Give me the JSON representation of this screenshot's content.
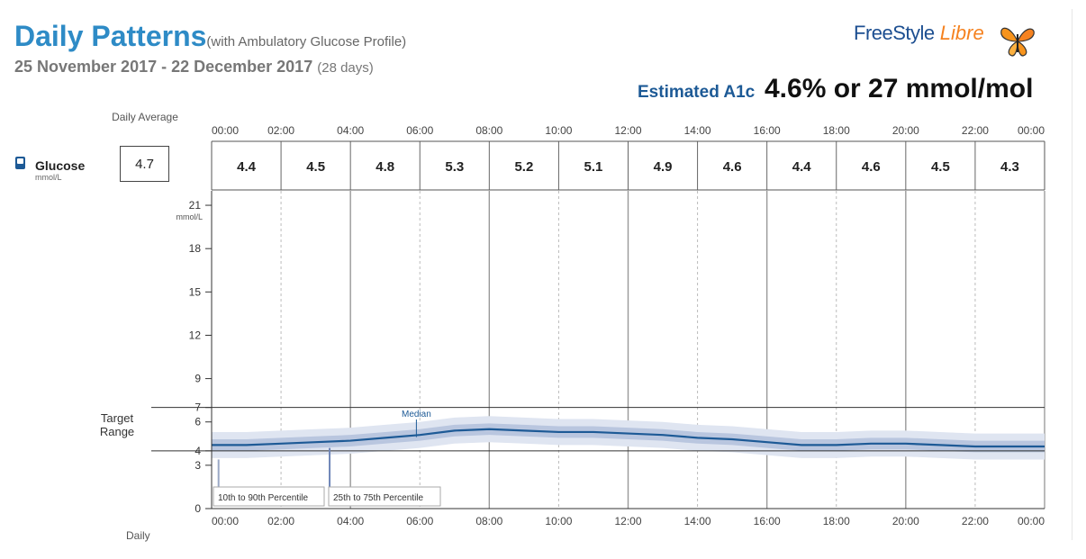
{
  "header": {
    "title": "Daily Patterns",
    "subtitle": "(with Ambulatory Glucose Profile)",
    "date_range": "25 November 2017 - 22 December 2017",
    "days": "(28 days)"
  },
  "brand": {
    "logo_part1": "FreeStyle",
    "logo_part2": "Libre"
  },
  "a1c": {
    "label": "Estimated A1c",
    "value": "4.6% or 27 mmol/mol"
  },
  "table": {
    "daily_average_label": "Daily Average",
    "glucose_label": "Glucose",
    "glucose_unit": "mmol/L",
    "daily_average_value": "4.7"
  },
  "labels": {
    "target_range": "Target Range",
    "median": "Median",
    "legend_outer": "10th to 90th Percentile",
    "legend_inner": "25th to 75th Percentile",
    "daily_bottom": "Daily"
  },
  "colors": {
    "title": "#2e8bc6",
    "median_line": "#1d5a96",
    "band_outer": "#dfe5f1",
    "band_inner": "#b9c6df",
    "grid_dashed": "#bbbbbb",
    "grid_solid": "#999999"
  },
  "chart_data": {
    "type": "line",
    "xlabel": "",
    "ylabel": "mmol/L",
    "x_unit_hours": [
      0,
      24
    ],
    "ylim": [
      0,
      22
    ],
    "y_ticks": [
      0,
      3,
      4,
      6,
      7,
      9,
      12,
      15,
      18,
      21
    ],
    "y_tick_labels": [
      "0",
      "3",
      "4",
      "6",
      "7",
      "9",
      "12",
      "15",
      "18",
      "21"
    ],
    "x_ticks": [
      "00:00",
      "02:00",
      "04:00",
      "06:00",
      "08:00",
      "10:00",
      "12:00",
      "14:00",
      "16:00",
      "18:00",
      "20:00",
      "22:00",
      "00:00"
    ],
    "target_range": [
      4,
      7
    ],
    "period_averages": [
      "4.4",
      "4.5",
      "4.8",
      "5.3",
      "5.2",
      "5.1",
      "4.9",
      "4.6",
      "4.4",
      "4.6",
      "4.5",
      "4.3"
    ],
    "series": [
      {
        "name": "Median",
        "x": [
          0,
          1,
          2,
          3,
          4,
          5,
          6,
          7,
          8,
          9,
          10,
          11,
          12,
          13,
          14,
          15,
          16,
          17,
          18,
          19,
          20,
          21,
          22,
          23,
          24
        ],
        "values": [
          4.4,
          4.4,
          4.5,
          4.6,
          4.7,
          4.9,
          5.1,
          5.4,
          5.5,
          5.4,
          5.3,
          5.3,
          5.2,
          5.1,
          4.9,
          4.8,
          4.6,
          4.4,
          4.4,
          4.5,
          4.5,
          4.4,
          4.3,
          4.3,
          4.3
        ]
      },
      {
        "name": "25th to 75th Percentile",
        "x": [
          0,
          1,
          2,
          3,
          4,
          5,
          6,
          7,
          8,
          9,
          10,
          11,
          12,
          13,
          14,
          15,
          16,
          17,
          18,
          19,
          20,
          21,
          22,
          23,
          24
        ],
        "low": [
          4.0,
          4.0,
          4.1,
          4.2,
          4.3,
          4.5,
          4.7,
          5.0,
          5.1,
          5.0,
          4.9,
          4.9,
          4.8,
          4.7,
          4.5,
          4.4,
          4.2,
          4.0,
          4.0,
          4.1,
          4.1,
          4.0,
          3.9,
          3.9,
          3.9
        ],
        "high": [
          4.8,
          4.8,
          4.9,
          5.0,
          5.1,
          5.3,
          5.5,
          5.8,
          5.9,
          5.8,
          5.7,
          5.7,
          5.6,
          5.5,
          5.3,
          5.2,
          5.0,
          4.8,
          4.8,
          4.9,
          4.9,
          4.8,
          4.7,
          4.7,
          4.7
        ]
      },
      {
        "name": "10th to 90th Percentile",
        "x": [
          0,
          1,
          2,
          3,
          4,
          5,
          6,
          7,
          8,
          9,
          10,
          11,
          12,
          13,
          14,
          15,
          16,
          17,
          18,
          19,
          20,
          21,
          22,
          23,
          24
        ],
        "low": [
          3.5,
          3.5,
          3.6,
          3.7,
          3.8,
          4.0,
          4.2,
          4.5,
          4.6,
          4.5,
          4.4,
          4.4,
          4.3,
          4.2,
          4.0,
          3.9,
          3.7,
          3.5,
          3.5,
          3.6,
          3.6,
          3.5,
          3.4,
          3.4,
          3.4
        ],
        "high": [
          5.3,
          5.3,
          5.4,
          5.5,
          5.6,
          5.8,
          6.0,
          6.3,
          6.4,
          6.3,
          6.2,
          6.2,
          6.1,
          6.0,
          5.8,
          5.7,
          5.5,
          5.3,
          5.3,
          5.4,
          5.4,
          5.3,
          5.2,
          5.2,
          5.2
        ]
      }
    ]
  }
}
